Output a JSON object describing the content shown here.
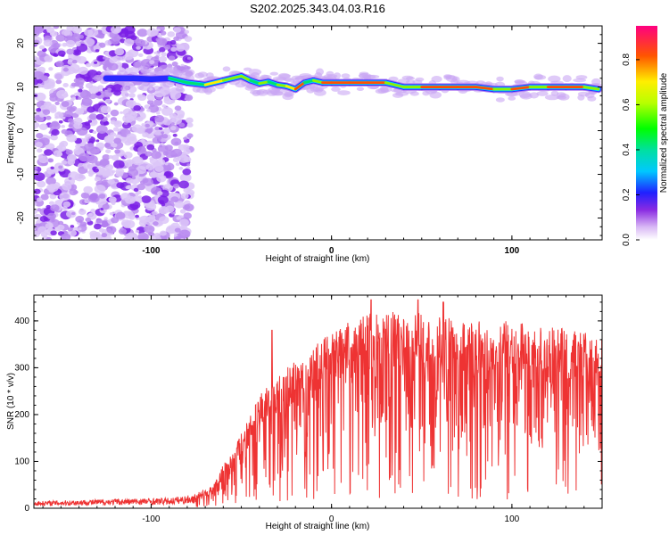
{
  "title": "S202.2025.343.04.03.R16",
  "chart_data": [
    {
      "type": "heatmap",
      "name": "spectrogram",
      "xlabel": "Height of straight line (km)",
      "ylabel": "Frequency (Hz)",
      "xlim": [
        -165,
        150
      ],
      "ylim": [
        -25,
        24
      ],
      "xticks": [
        -100,
        0,
        100
      ],
      "yticks": [
        -20,
        -10,
        0,
        10,
        20
      ],
      "ridge": {
        "x": [
          -125,
          -110,
          -100,
          -90,
          -80,
          -70,
          -60,
          -50,
          -45,
          -40,
          -35,
          -30,
          -25,
          -20,
          -15,
          -10,
          -5,
          0,
          10,
          20,
          30,
          40,
          50,
          60,
          70,
          80,
          90,
          100,
          110,
          120,
          130,
          140,
          148
        ],
        "y": [
          12,
          12,
          11.8,
          12,
          11,
          10.5,
          11.5,
          12.5,
          11.5,
          10.8,
          11.2,
          10.5,
          10.2,
          9.5,
          11,
          11.5,
          11,
          11,
          11,
          11,
          11,
          10,
          10,
          10,
          10,
          10,
          9.5,
          9.5,
          10,
          10,
          10,
          10,
          9.5
        ],
        "amplitude": [
          0.3,
          0.3,
          0.35,
          0.5,
          0.55,
          0.7,
          0.6,
          0.6,
          0.55,
          0.6,
          0.55,
          0.65,
          0.75,
          0.85,
          0.55,
          0.6,
          0.9,
          0.95,
          0.95,
          0.95,
          0.6,
          0.65,
          0.9,
          0.95,
          0.95,
          0.95,
          0.65,
          0.95,
          0.6,
          0.95,
          0.95,
          0.6,
          0.4
        ]
      },
      "noise_region_x": [
        -165,
        -78
      ],
      "colorbar": {
        "label": "Normalized spectral amplitude",
        "range": [
          0.0,
          0.95
        ],
        "ticks": [
          0.0,
          0.2,
          0.4,
          0.6,
          0.8
        ]
      }
    },
    {
      "type": "line",
      "name": "snr",
      "xlabel": "Height of straight line (km)",
      "ylabel": "SNR (10 * v/v)",
      "xlim": [
        -165,
        150
      ],
      "ylim": [
        0,
        455
      ],
      "xticks": [
        -100,
        0,
        100
      ],
      "yticks": [
        0,
        100,
        200,
        300,
        400
      ],
      "color": "#ee3333",
      "envelope": {
        "x": [
          -165,
          -120,
          -90,
          -75,
          -70,
          -65,
          -60,
          -55,
          -50,
          -45,
          -40,
          -35,
          -30,
          -25,
          -20,
          -15,
          -10,
          -5,
          0,
          5,
          10,
          15,
          20,
          30,
          40,
          60,
          80,
          100,
          120,
          140,
          150
        ],
        "y": [
          15,
          20,
          22,
          30,
          40,
          50,
          90,
          120,
          155,
          200,
          235,
          255,
          265,
          285,
          300,
          315,
          330,
          345,
          355,
          370,
          380,
          390,
          395,
          400,
          400,
          395,
          385,
          380,
          370,
          360,
          345
        ]
      },
      "spikes": [
        {
          "x": -33,
          "y": 380
        },
        {
          "x": 22,
          "y": 445
        },
        {
          "x": 48,
          "y": 445
        },
        {
          "x": 62,
          "y": 440
        }
      ]
    }
  ]
}
